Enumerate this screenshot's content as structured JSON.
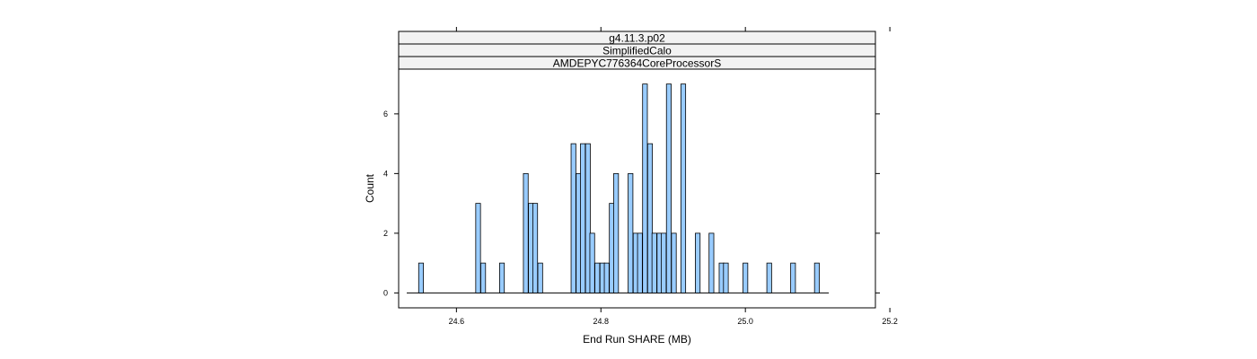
{
  "chart_data": {
    "type": "bar",
    "title": "",
    "xlabel": "End Run SHARE (MB)",
    "ylabel": "Count",
    "strips": [
      "g4.11.3.p02",
      "SimplifiedCalo",
      "AMDEPYC776364CoreProcessorS"
    ],
    "xlim": [
      24.52,
      25.18
    ],
    "ylim": [
      -0.5,
      7.5
    ],
    "x_ticks": [
      24.6,
      24.8,
      25.0,
      25.2
    ],
    "x_tick_labels": [
      "24.6",
      "24.8",
      "25.0",
      "25.2"
    ],
    "y_ticks": [
      0,
      2,
      4,
      6
    ],
    "y_tick_labels": [
      "0",
      "2",
      "4",
      "6"
    ],
    "bin_width": 0.0066,
    "bins": [
      {
        "x": 24.551,
        "count": 1
      },
      {
        "x": 24.63,
        "count": 3
      },
      {
        "x": 24.637,
        "count": 1
      },
      {
        "x": 24.663,
        "count": 1
      },
      {
        "x": 24.696,
        "count": 4
      },
      {
        "x": 24.703,
        "count": 3
      },
      {
        "x": 24.709,
        "count": 3
      },
      {
        "x": 24.716,
        "count": 1
      },
      {
        "x": 24.762,
        "count": 5
      },
      {
        "x": 24.769,
        "count": 4
      },
      {
        "x": 24.775,
        "count": 5
      },
      {
        "x": 24.782,
        "count": 5
      },
      {
        "x": 24.788,
        "count": 2
      },
      {
        "x": 24.795,
        "count": 1
      },
      {
        "x": 24.802,
        "count": 1
      },
      {
        "x": 24.808,
        "count": 1
      },
      {
        "x": 24.815,
        "count": 3
      },
      {
        "x": 24.821,
        "count": 4
      },
      {
        "x": 24.841,
        "count": 4
      },
      {
        "x": 24.848,
        "count": 2
      },
      {
        "x": 24.854,
        "count": 2
      },
      {
        "x": 24.861,
        "count": 7
      },
      {
        "x": 24.868,
        "count": 5
      },
      {
        "x": 24.874,
        "count": 2
      },
      {
        "x": 24.881,
        "count": 2
      },
      {
        "x": 24.887,
        "count": 2
      },
      {
        "x": 24.894,
        "count": 7
      },
      {
        "x": 24.901,
        "count": 2
      },
      {
        "x": 24.914,
        "count": 7
      },
      {
        "x": 24.934,
        "count": 2
      },
      {
        "x": 24.953,
        "count": 2
      },
      {
        "x": 24.967,
        "count": 1
      },
      {
        "x": 24.973,
        "count": 1
      },
      {
        "x": 25.0,
        "count": 1
      },
      {
        "x": 25.033,
        "count": 1
      },
      {
        "x": 25.066,
        "count": 1
      },
      {
        "x": 25.099,
        "count": 1
      }
    ],
    "colors": {
      "bar_fill": "#99ccff",
      "bar_stroke": "#000000",
      "strip_bg": "#f2f2f2",
      "frame": "#000000"
    },
    "grid": false,
    "legend": "none"
  }
}
